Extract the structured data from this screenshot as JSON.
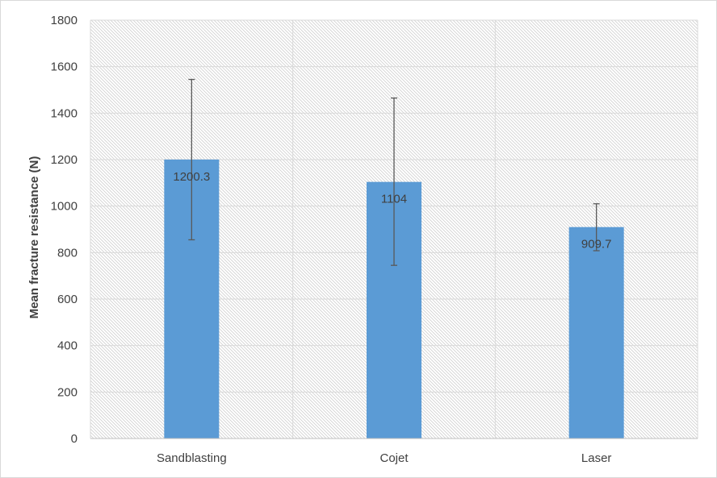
{
  "chart_data": {
    "type": "bar",
    "title": "",
    "xlabel": "",
    "ylabel": "Mean fracture resistance (N)",
    "categories": [
      "Sandblasting",
      "Cojet",
      "Laser"
    ],
    "values": [
      1200.3,
      1104,
      909.7
    ],
    "data_labels": [
      "1200.3",
      "1104",
      "909.7"
    ],
    "error_bars": [
      {
        "low": 855,
        "high": 1545
      },
      {
        "low": 745,
        "high": 1465
      },
      {
        "low": 808,
        "high": 1010
      }
    ],
    "ylim": [
      0,
      1800
    ],
    "yticks": [
      0,
      200,
      400,
      600,
      800,
      1000,
      1200,
      1400,
      1600,
      1800
    ],
    "ytick_labels": [
      "0",
      "200",
      "400",
      "600",
      "800",
      "1000",
      "1200",
      "1400",
      "1600",
      "1800"
    ],
    "grid": true,
    "legend": "none",
    "colors": {
      "bar": "#5b9bd5",
      "grid": "#d9d9d9",
      "error_bar": "#595959",
      "axis": "#bfbfbf"
    }
  }
}
